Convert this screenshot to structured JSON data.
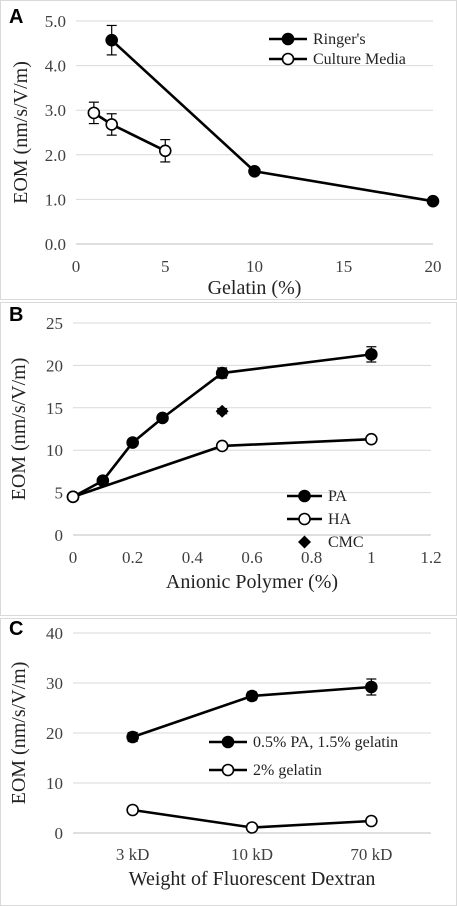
{
  "chart_data": [
    {
      "panel": "A",
      "type": "line",
      "xlabel": "Gelatin (%)",
      "ylabel": "EOM (nm/s/V/m)",
      "xlim": [
        0,
        20
      ],
      "ylim": [
        0,
        5
      ],
      "xticks": [
        0,
        5,
        10,
        15,
        20
      ],
      "xtick_labels": [
        "0",
        "5",
        "10",
        "15",
        "20"
      ],
      "yticks": [
        0,
        1,
        2,
        3,
        4,
        5
      ],
      "ytick_labels": [
        "0.0",
        "1.0",
        "2.0",
        "3.0",
        "4.0",
        "5.0"
      ],
      "legend_position": "top-right",
      "series": [
        {
          "name": "Ringer's",
          "marker": "filled-circle",
          "connected": true,
          "x": [
            2,
            10,
            20
          ],
          "y": [
            4.57,
            1.63,
            0.96
          ],
          "err": [
            0.33,
            0,
            0
          ]
        },
        {
          "name": "Culture Media",
          "marker": "open-circle",
          "connected": true,
          "x": [
            1,
            2,
            5
          ],
          "y": [
            2.94,
            2.68,
            2.09
          ],
          "err": [
            0.24,
            0.24,
            0.25
          ]
        }
      ]
    },
    {
      "panel": "B",
      "type": "line",
      "xlabel": "Anionic Polymer (%)",
      "ylabel": "EOM (nm/s/V/m)",
      "xlim": [
        0,
        1.2
      ],
      "ylim": [
        0,
        25
      ],
      "xticks": [
        0,
        0.2,
        0.4,
        0.6,
        0.8,
        1.0,
        1.2
      ],
      "xtick_labels": [
        "0",
        "0.2",
        "0.4",
        "0.6",
        "0.8",
        "1",
        "1.2"
      ],
      "yticks": [
        0,
        5,
        10,
        15,
        20,
        25
      ],
      "ytick_labels": [
        "0",
        "5",
        "10",
        "15",
        "20",
        "25"
      ],
      "legend_position": "bottom-right",
      "series": [
        {
          "name": "PA",
          "marker": "filled-circle",
          "connected": true,
          "x": [
            0,
            0.1,
            0.2,
            0.3,
            0.5,
            1.0
          ],
          "y": [
            4.5,
            6.4,
            10.9,
            13.8,
            19.1,
            21.3
          ],
          "err": [
            0,
            0,
            0,
            0,
            0.6,
            0.9
          ]
        },
        {
          "name": "HA",
          "marker": "open-circle",
          "connected": true,
          "x": [
            0,
            0.5,
            1.0
          ],
          "y": [
            4.5,
            10.5,
            11.3
          ],
          "err": [
            0,
            0,
            0
          ]
        },
        {
          "name": "CMC",
          "marker": "diamond",
          "connected": false,
          "x": [
            0.5
          ],
          "y": [
            14.6
          ],
          "err": [
            0.3
          ]
        }
      ]
    },
    {
      "panel": "C",
      "type": "line",
      "xlabel": "Weight of Fluorescent Dextran",
      "ylabel": "EOM (nm/s/V/m)",
      "categories": [
        "3 kD",
        "10 kD",
        "70 kD"
      ],
      "ylim": [
        0,
        40
      ],
      "yticks": [
        0,
        10,
        20,
        30,
        40
      ],
      "ytick_labels": [
        "0",
        "10",
        "20",
        "30",
        "40"
      ],
      "legend_position": "center-right",
      "series": [
        {
          "name": "0.5% PA, 1.5% gelatin",
          "marker": "filled-circle",
          "connected": true,
          "values": [
            19.2,
            27.4,
            29.2
          ],
          "err": [
            0.9,
            0.8,
            1.6
          ]
        },
        {
          "name": "2% gelatin",
          "marker": "open-circle",
          "connected": true,
          "values": [
            4.6,
            1.1,
            2.4
          ],
          "err": [
            0,
            0,
            0
          ]
        }
      ]
    }
  ]
}
